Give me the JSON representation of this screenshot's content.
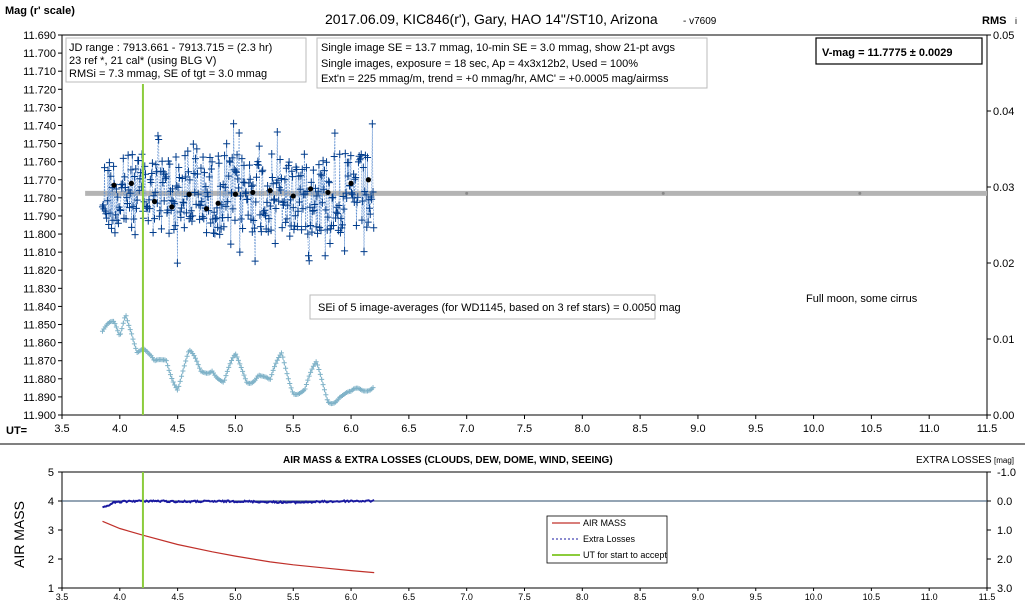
{
  "top": {
    "title": "2017.06.09,  KIC846(r'),  Gary,  HAO  14\"/ST10, Arizona",
    "version": "- v7609",
    "ylabel": "Mag (r' scale)",
    "ylabel_right": "RMS",
    "ylabel_right_suffix": "i",
    "xlabel": "UT=",
    "info_box_1": [
      "JD range : 7913.661 - 7913.715 = (2.3 hr)",
      "23 ref *, 21 cal* (using BLG V)",
      "RMSi = 7.3 mmag, SE of tgt = 3.0 mmag"
    ],
    "info_box_2": [
      "Single image SE = 13.7 mmag, 10-min SE = 3.0 mmag, show 21-pt avgs",
      "Single images, exposure = 18 sec, Ap = 4x3x12b2, Used = 100%",
      "Ext'n = 225 mmag/m, trend = +0 mmag/hr, AMC' = +0.0005 mag/airmss"
    ],
    "vmag_box": "V-mag = 11.7775 ± 0.0029",
    "se_note": "SEi of 5 image-averages (for WD1145, based on 3 ref stars) = 0.0050 mag",
    "moon_note": "Full moon, some cirrus"
  },
  "bottom": {
    "title": "AIR MASS & EXTRA LOSSES (CLOUDS, DEW, DOME, WIND, SEEING)",
    "ylabel": "AIR MASS",
    "ylabel_right": "EXTRA LOSSES",
    "ylabel_right_unit": "[mag]",
    "legend": [
      "AIR MASS",
      "Extra Losses",
      "UT for start to accept"
    ]
  },
  "colors": {
    "target": "#003c8c",
    "avg": "#000000",
    "rms": "#7fb2c8",
    "fit_line": "#b4b4b4",
    "accept_line": "#8ccc3c",
    "airmass": "#c0302a",
    "extra_losses": "#1a1aa0"
  },
  "chart_data": [
    {
      "type": "scatter",
      "title": "2017.06.09,  KIC846(r'),  Gary,  HAO  14\"/ST10, Arizona",
      "xlabel": "UT=",
      "ylabel": "Mag (r' scale)",
      "xlim": [
        3.5,
        11.5
      ],
      "ylim": [
        11.9,
        11.69
      ],
      "ylim_right": [
        0.0,
        0.05
      ],
      "x_ticks": [
        "3.5",
        "4.0",
        "4.5",
        "5.0",
        "5.5",
        "6.0",
        "6.5",
        "7.0",
        "7.5",
        "8.0",
        "8.5",
        "9.0",
        "9.5",
        "10.0",
        "10.5",
        "11.0",
        "11.5"
      ],
      "y_ticks": [
        "11.690",
        "11.700",
        "11.710",
        "11.720",
        "11.730",
        "11.740",
        "11.750",
        "11.760",
        "11.770",
        "11.780",
        "11.790",
        "11.800",
        "11.810",
        "11.820",
        "11.830",
        "11.840",
        "11.850",
        "11.860",
        "11.870",
        "11.880",
        "11.890",
        "11.900"
      ],
      "y_right_ticks": [
        "0.00",
        "0.01",
        "0.02",
        "0.03",
        "0.04",
        "0.05"
      ],
      "grid": false,
      "ut_accept_start": 4.2,
      "vmag": 11.7775,
      "series": [
        {
          "type": "line",
          "values_fit": 11.7775
        },
        {
          "x": [
            3.95,
            4.1,
            4.3,
            4.45,
            4.6,
            4.75,
            4.85,
            5.0,
            5.15,
            5.3,
            5.5,
            5.65,
            5.8,
            6.0,
            6.15
          ],
          "y": [
            11.773,
            11.772,
            11.782,
            11.785,
            11.778,
            11.786,
            11.783,
            11.778,
            11.777,
            11.776,
            11.779,
            11.775,
            11.777,
            11.772,
            11.77
          ]
        },
        {
          "x_range": [
            3.85,
            6.2
          ],
          "y_center": 11.778,
          "y_scatter": 0.025
        },
        {
          "x": [
            3.85,
            3.95,
            4.0,
            4.05,
            4.1,
            4.15,
            4.2,
            4.25,
            4.3,
            4.4,
            4.5,
            4.6,
            4.7,
            4.8,
            4.9,
            5.0,
            5.1,
            5.2,
            5.3,
            5.4,
            5.5,
            5.6,
            5.7,
            5.8,
            5.9,
            6.0,
            6.1,
            6.2
          ],
          "y": [
            0.0108,
            0.0112,
            0.01,
            0.014,
            0.012,
            0.009,
            0.0085,
            0.007,
            0.006,
            0.008,
            0.004,
            0.0075,
            0.0055,
            0.007,
            0.004,
            0.007,
            0.005,
            0.006,
            0.0035,
            0.008,
            0.004,
            0.003,
            0.006,
            0.0025,
            0.003,
            0.002,
            0.003,
            0.005
          ]
        }
      ]
    },
    {
      "type": "line",
      "title": "AIR MASS & EXTRA LOSSES (CLOUDS, DEW, DOME, WIND, SEEING)",
      "ylabel": "AIR MASS",
      "xlim": [
        3.5,
        11.5
      ],
      "ylim": [
        1,
        5
      ],
      "ylim_right": [
        3.0,
        -1.0
      ],
      "x_ticks": [
        "3.5",
        "4.0",
        "4.5",
        "5.0",
        "5.5",
        "6.0",
        "6.5",
        "7.0",
        "7.5",
        "8.0",
        "8.5",
        "9.0",
        "9.5",
        "10.0",
        "10.5",
        "11.0",
        "11.5"
      ],
      "y_ticks": [
        "1",
        "2",
        "3",
        "4",
        "5"
      ],
      "y_right_ticks": [
        "-1.0",
        "0.0",
        "1.0",
        "2.0",
        "3.0"
      ],
      "series": [
        {
          "name": "AIR MASS",
          "x": [
            3.85,
            4.0,
            4.2,
            4.5,
            4.8,
            5.0,
            5.3,
            5.5,
            5.8,
            6.0,
            6.2
          ],
          "y": [
            3.3,
            3.05,
            2.82,
            2.5,
            2.25,
            2.1,
            1.9,
            1.8,
            1.68,
            1.6,
            1.53
          ]
        },
        {
          "name": "Extra Losses",
          "x": [
            3.85,
            3.95,
            4.1,
            4.3,
            4.5,
            5.0,
            5.5,
            6.0,
            6.2
          ],
          "y": [
            0.25,
            0.05,
            0.0,
            0.0,
            0.02,
            0.01,
            0.05,
            0.0,
            0.0
          ]
        },
        {
          "name": "UT for start to accept",
          "x": [
            4.2,
            4.2
          ],
          "y": [
            1,
            5
          ]
        }
      ]
    }
  ]
}
